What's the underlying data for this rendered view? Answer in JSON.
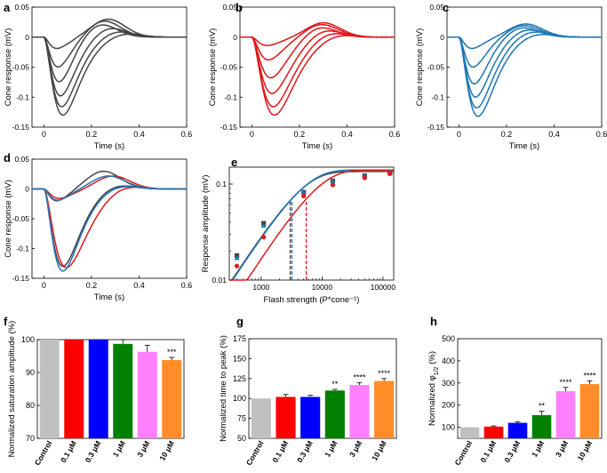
{
  "chart_data": [
    {
      "panel": "a",
      "type": "line",
      "color": "#444444",
      "xlabel": "Time (s)",
      "ylabel": "Cone response (mV)",
      "xlim": [
        -0.05,
        0.6
      ],
      "ylim": [
        -0.15,
        0.05
      ],
      "xticks": [
        "0",
        "0.2",
        "0.4",
        "0.6"
      ],
      "yticks": [
        "0.05",
        "0",
        "-0.05",
        "-0.1",
        "-0.15"
      ],
      "series": [
        {
          "name": "r1",
          "peak": -0.019,
          "tp": 0.055,
          "over": 0.03,
          "to": 0.27
        },
        {
          "name": "r2",
          "peak": -0.05,
          "tp": 0.06,
          "over": 0.028,
          "to": 0.25
        },
        {
          "name": "r3",
          "peak": -0.075,
          "tp": 0.065,
          "over": 0.025,
          "to": 0.23
        },
        {
          "name": "r4",
          "peak": -0.098,
          "tp": 0.07,
          "over": 0.018,
          "to": 0.27
        },
        {
          "name": "r5",
          "peak": -0.116,
          "tp": 0.075,
          "over": 0.012,
          "to": 0.3
        },
        {
          "name": "r6",
          "peak": -0.13,
          "tp": 0.08,
          "over": 0.008,
          "to": 0.33
        }
      ]
    },
    {
      "panel": "b",
      "type": "line",
      "color": "#e0191c",
      "xlabel": "Time (s)",
      "ylabel": "Cone response (mV)",
      "xlim": [
        -0.05,
        0.6
      ],
      "ylim": [
        -0.15,
        0.05
      ],
      "xticks": [
        "0",
        "0.2",
        "0.4",
        "0.6"
      ],
      "yticks": [
        "0.05",
        "0",
        "-0.05",
        "-0.1",
        "-0.15"
      ],
      "series": [
        {
          "name": "r1",
          "peak": -0.014,
          "tp": 0.065,
          "over": 0.024,
          "to": 0.3
        },
        {
          "name": "r2",
          "peak": -0.038,
          "tp": 0.07,
          "over": 0.022,
          "to": 0.29
        },
        {
          "name": "r3",
          "peak": -0.068,
          "tp": 0.08,
          "over": 0.02,
          "to": 0.28
        },
        {
          "name": "r4",
          "peak": -0.094,
          "tp": 0.085,
          "over": 0.016,
          "to": 0.3
        },
        {
          "name": "r5",
          "peak": -0.116,
          "tp": 0.09,
          "over": 0.012,
          "to": 0.32
        },
        {
          "name": "r6",
          "peak": -0.13,
          "tp": 0.095,
          "over": 0.008,
          "to": 0.35
        }
      ]
    },
    {
      "panel": "c",
      "type": "line",
      "color": "#1f77b4",
      "xlabel": "Time (s)",
      "ylabel": "Cone response (mV)",
      "xlim": [
        -0.05,
        0.6
      ],
      "ylim": [
        -0.15,
        0.05
      ],
      "xticks": [
        "0",
        "0.2",
        "0.4",
        "0.6"
      ],
      "yticks": [
        "0.05",
        "0",
        "-0.05",
        "-0.1",
        "-0.15"
      ],
      "series": [
        {
          "name": "r1",
          "peak": -0.019,
          "tp": 0.055,
          "over": 0.022,
          "to": 0.28
        },
        {
          "name": "r2",
          "peak": -0.05,
          "tp": 0.06,
          "over": 0.02,
          "to": 0.27
        },
        {
          "name": "r3",
          "peak": -0.078,
          "tp": 0.065,
          "over": 0.018,
          "to": 0.26
        },
        {
          "name": "r4",
          "peak": -0.1,
          "tp": 0.07,
          "over": 0.015,
          "to": 0.28
        },
        {
          "name": "r5",
          "peak": -0.118,
          "tp": 0.075,
          "over": 0.012,
          "to": 0.3
        },
        {
          "name": "r6",
          "peak": -0.132,
          "tp": 0.08,
          "over": 0.008,
          "to": 0.32
        }
      ]
    },
    {
      "panel": "d",
      "type": "line",
      "xlabel": "Time (s)",
      "ylabel": "Cone response (mV)",
      "xlim": [
        -0.05,
        0.6
      ],
      "ylim": [
        -0.15,
        0.05
      ],
      "xticks": [
        "0",
        "0.2",
        "0.4",
        "0.6"
      ],
      "yticks": [
        "0.05",
        "0",
        "-0.05",
        "-0.1",
        "-0.15"
      ],
      "series": [
        {
          "name": "gray-1",
          "color": "#444444",
          "peak": -0.02,
          "tp": 0.055,
          "over": 0.03,
          "to": 0.25
        },
        {
          "name": "gray-2",
          "color": "#444444",
          "peak": -0.13,
          "tp": 0.08,
          "over": 0.01,
          "to": 0.3
        },
        {
          "name": "red-1",
          "color": "#e0191c",
          "peak": -0.016,
          "tp": 0.065,
          "over": 0.022,
          "to": 0.29
        },
        {
          "name": "red-2",
          "color": "#e0191c",
          "peak": -0.132,
          "tp": 0.095,
          "over": 0.01,
          "to": 0.33
        },
        {
          "name": "blue-1",
          "color": "#1f77b4",
          "peak": -0.019,
          "tp": 0.058,
          "over": 0.022,
          "to": 0.27
        },
        {
          "name": "blue-2",
          "color": "#1f77b4",
          "peak": -0.138,
          "tp": 0.08,
          "over": 0.008,
          "to": 0.31
        }
      ]
    },
    {
      "panel": "e",
      "type": "scatter",
      "xlabel": "Flash strength (P*cone⁻¹)",
      "ylabel": "Response amplitude (mV)",
      "xscale": "log",
      "yscale": "log",
      "xlim": [
        300,
        150000
      ],
      "ylim": [
        0.01,
        0.15
      ],
      "xticks": [
        "1000",
        "10000",
        "100000"
      ],
      "yticks": [
        "0.01",
        "0.1"
      ],
      "series": [
        {
          "name": "gray",
          "color": "#444444",
          "marker": "square",
          "x": [
            400,
            1100,
            5000,
            15000,
            50000,
            130000
          ],
          "y": [
            0.018,
            0.039,
            0.082,
            0.108,
            0.122,
            0.13
          ]
        },
        {
          "name": "blue",
          "color": "#1f77b4",
          "marker": "triangle",
          "x": [
            400,
            1100,
            5000,
            15000,
            50000,
            130000
          ],
          "y": [
            0.017,
            0.037,
            0.083,
            0.107,
            0.122,
            0.133
          ]
        },
        {
          "name": "red",
          "color": "#e0191c",
          "marker": "circle",
          "x": [
            400,
            1100,
            5000,
            15000,
            50000,
            130000
          ],
          "y": [
            0.014,
            0.028,
            0.075,
            0.098,
            0.116,
            0.128
          ]
        }
      ],
      "fits": [
        {
          "name": "gray-fit",
          "color": "#444444",
          "vmax": 0.135,
          "half": 3000
        },
        {
          "name": "blue-fit",
          "color": "#1f77b4",
          "vmax": 0.14,
          "half": 3200
        },
        {
          "name": "red-fit",
          "color": "#e0191c",
          "vmax": 0.14,
          "half": 5500
        }
      ],
      "half_markers": [
        {
          "name": "gray",
          "color": "#444444",
          "x": 3000
        },
        {
          "name": "blue",
          "color": "#1f77b4",
          "x": 3200
        },
        {
          "name": "red",
          "color": "#e0191c",
          "x": 5500
        }
      ]
    },
    {
      "panel": "f",
      "type": "bar",
      "ylabel": "Normalized saturation amplitude (%)",
      "ylim": [
        70,
        100
      ],
      "yticks": [
        "70",
        "80",
        "90",
        "100"
      ],
      "categories": [
        "Control",
        "0.1 μM",
        "0.3 μM",
        "1 μM",
        "3 μM",
        "10 μM"
      ],
      "colors": [
        "#c0c0c0",
        "#ff0000",
        "#0000ff",
        "#008000",
        "#ff80ff",
        "#ff8c28"
      ],
      "values": [
        100,
        100,
        100,
        98.7,
        96.3,
        93.8
      ],
      "errors": [
        0,
        0,
        0,
        1.3,
        2.0,
        0.8
      ],
      "significance": [
        "",
        "",
        "",
        "",
        "",
        "***"
      ]
    },
    {
      "panel": "g",
      "type": "bar",
      "ylabel": "Normalized time to peak (%)",
      "ylim": [
        50,
        175
      ],
      "yticks": [
        "50",
        "75",
        "100",
        "125",
        "150",
        "175"
      ],
      "categories": [
        "Control",
        "0.1 μM",
        "0.3 μM",
        "1 μM",
        "3 μM",
        "10 μM"
      ],
      "colors": [
        "#c0c0c0",
        "#ff0000",
        "#0000ff",
        "#008000",
        "#ff80ff",
        "#ff8c28"
      ],
      "values": [
        100,
        102,
        102,
        110,
        117,
        122
      ],
      "errors": [
        0,
        3,
        2,
        1.5,
        3,
        3
      ],
      "significance": [
        "",
        "",
        "",
        "**",
        "****",
        "****"
      ]
    },
    {
      "panel": "h",
      "type": "bar",
      "ylabel": "Normalized φ1/2 (%)",
      "ylim": [
        50,
        500
      ],
      "yticks": [
        "100",
        "200",
        "300",
        "400",
        "500"
      ],
      "categories": [
        "Control",
        "0.1 μM",
        "0.3 μM",
        "1 μM",
        "3 μM",
        "10 μM"
      ],
      "colors": [
        "#c0c0c0",
        "#ff0000",
        "#0000ff",
        "#008000",
        "#ff80ff",
        "#ff8c28"
      ],
      "values": [
        100,
        103,
        120,
        155,
        263,
        295
      ],
      "errors": [
        0,
        3,
        5,
        18,
        17,
        15
      ],
      "significance": [
        "",
        "",
        "",
        "**",
        "****",
        "****"
      ]
    }
  ]
}
